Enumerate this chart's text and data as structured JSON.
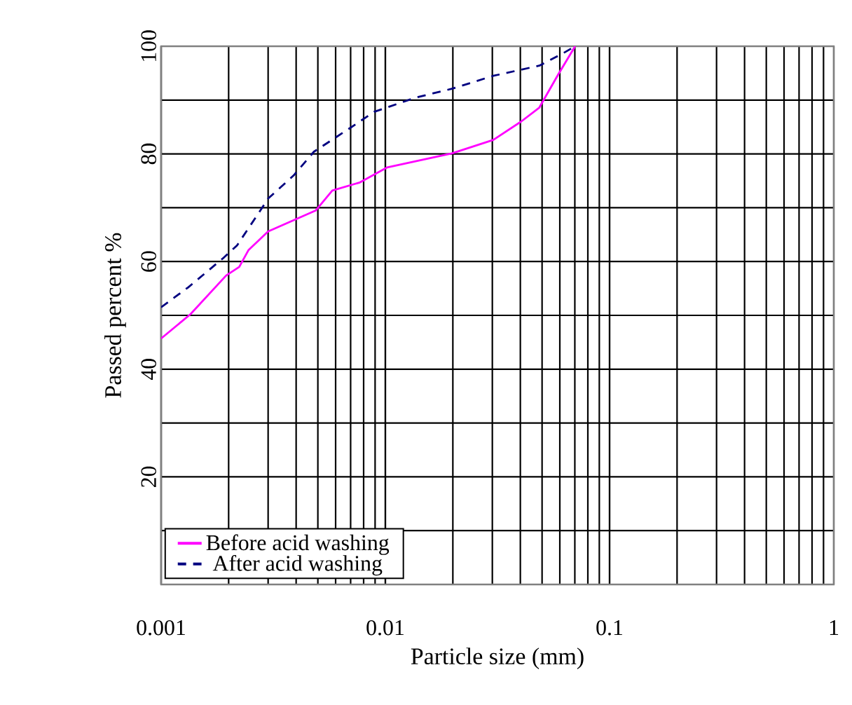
{
  "chart_data": {
    "type": "line",
    "xlabel": "Particle size (mm)",
    "ylabel": "Passed percent  %",
    "log": "x",
    "grid": true,
    "legend": "bottom left",
    "xlim": [
      0.001,
      1
    ],
    "xticks": [
      0.001,
      0.01,
      0.1,
      1
    ],
    "ylim": [
      0,
      100
    ],
    "yticks": [
      {
        "value": 10,
        "label": null
      },
      20,
      {
        "value": 30,
        "label": null
      },
      40,
      {
        "value": 50,
        "label": null
      },
      60,
      {
        "value": 70,
        "label": null
      },
      80,
      {
        "value": 90,
        "label": null
      },
      100
    ],
    "series": [
      {
        "name": "Before acid washing",
        "color": "#ff00ff",
        "line_style": "solid",
        "x": [
          0.001,
          0.00135,
          0.00195,
          0.00223,
          0.00245,
          0.003,
          0.0049,
          0.0058,
          0.0077,
          0.0102,
          0.0198,
          0.0303,
          0.0403,
          0.0486,
          0.0589,
          0.0702
        ],
        "values": [
          45.7,
          50.2,
          57.4,
          59,
          62.1,
          65.6,
          69.5,
          73.2,
          74.7,
          77.5,
          80.1,
          82.6,
          86,
          88.6,
          94.7,
          100
        ]
      },
      {
        "name": "After acid washing",
        "color": "#000080",
        "line_style": "dashed",
        "x": [
          0.001,
          0.00132,
          0.0019,
          0.00218,
          0.0027,
          0.003,
          0.0039,
          0.0048,
          0.0069,
          0.0089,
          0.0135,
          0.0198,
          0.0303,
          0.0486,
          0.0615,
          0.0702
        ],
        "values": [
          51.5,
          55.2,
          60.7,
          63,
          68.8,
          71.7,
          76,
          80.4,
          84.7,
          87.8,
          90.4,
          92.1,
          94.5,
          96.4,
          98.6,
          100
        ]
      }
    ]
  }
}
